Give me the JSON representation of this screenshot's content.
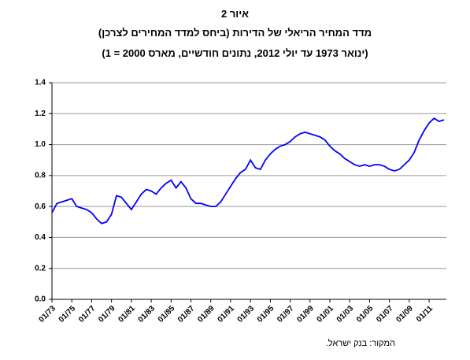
{
  "chart_data": {
    "type": "line",
    "title": "איור 2",
    "subtitle": "מדד המחיר הריאלי של הדירות (ביחס למדד המחירים לצרכן)",
    "subtitle2": "(ינואר 1973 עד יולי 2012, נתונים חודשיים, מארס 2000 = 1)",
    "source": "המקור: בנק ישראל.",
    "color": "#0000ff",
    "grid": true,
    "x": [
      "01/73",
      "07/73",
      "01/74",
      "07/74",
      "01/75",
      "07/75",
      "01/76",
      "07/76",
      "01/77",
      "07/77",
      "01/78",
      "07/78",
      "01/79",
      "07/79",
      "01/80",
      "07/80",
      "01/81",
      "07/81",
      "01/82",
      "07/82",
      "01/83",
      "07/83",
      "01/84",
      "07/84",
      "01/85",
      "07/85",
      "01/86",
      "07/86",
      "01/87",
      "07/87",
      "01/88",
      "07/88",
      "01/89",
      "07/89",
      "01/90",
      "07/90",
      "01/91",
      "07/91",
      "01/92",
      "07/92",
      "01/93",
      "07/93",
      "01/94",
      "07/94",
      "01/95",
      "07/95",
      "01/96",
      "07/96",
      "01/97",
      "07/97",
      "01/98",
      "07/98",
      "01/99",
      "07/99",
      "01/00",
      "07/00",
      "01/01",
      "07/01",
      "01/02",
      "07/02",
      "01/03",
      "07/03",
      "01/04",
      "07/04",
      "01/05",
      "07/05",
      "01/06",
      "07/06",
      "01/07",
      "07/07",
      "01/08",
      "07/08",
      "01/09",
      "07/09",
      "01/10",
      "07/10",
      "01/11",
      "07/11",
      "01/12",
      "07/12"
    ],
    "values": [
      0.56,
      0.62,
      0.63,
      0.64,
      0.65,
      0.6,
      0.59,
      0.58,
      0.56,
      0.52,
      0.49,
      0.5,
      0.55,
      0.67,
      0.66,
      0.62,
      0.58,
      0.63,
      0.68,
      0.71,
      0.7,
      0.68,
      0.72,
      0.75,
      0.77,
      0.72,
      0.76,
      0.72,
      0.65,
      0.62,
      0.62,
      0.61,
      0.6,
      0.6,
      0.63,
      0.68,
      0.73,
      0.78,
      0.82,
      0.84,
      0.9,
      0.85,
      0.84,
      0.9,
      0.94,
      0.97,
      0.99,
      1.0,
      1.02,
      1.05,
      1.07,
      1.08,
      1.07,
      1.06,
      1.05,
      1.03,
      0.99,
      0.96,
      0.94,
      0.91,
      0.89,
      0.87,
      0.86,
      0.87,
      0.86,
      0.87,
      0.87,
      0.86,
      0.84,
      0.83,
      0.84,
      0.87,
      0.9,
      0.95,
      1.03,
      1.09,
      1.14,
      1.17,
      1.15,
      1.16
    ],
    "xticks": [
      "01/73",
      "01/75",
      "01/77",
      "01/79",
      "01/81",
      "01/83",
      "01/85",
      "01/87",
      "01/89",
      "01/91",
      "01/93",
      "01/95",
      "01/97",
      "01/99",
      "01/01",
      "01/03",
      "01/05",
      "01/07",
      "01/09",
      "01/11"
    ],
    "ylim": [
      0,
      1.4
    ],
    "yticks": [
      {
        "value": 0,
        "label": "0.0"
      },
      0.2,
      0.4,
      0.6,
      0.8,
      {
        "value": 1,
        "label": "1.0"
      },
      1.2,
      1.4
    ]
  }
}
